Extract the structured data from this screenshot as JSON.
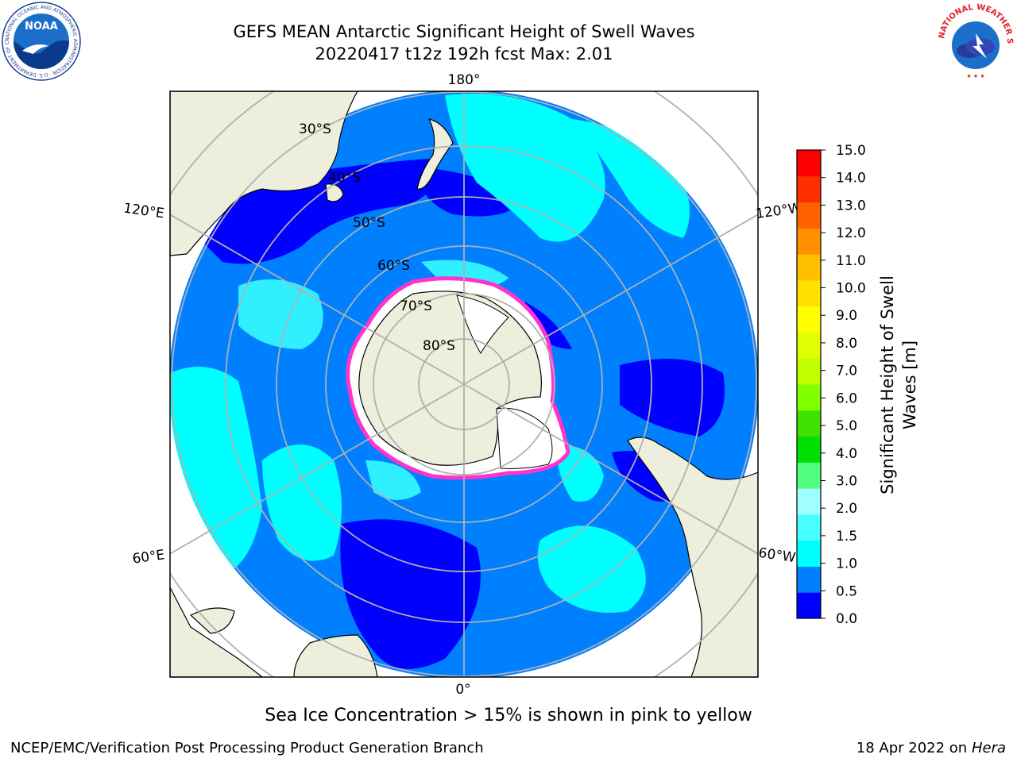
{
  "header": {
    "title_line1": "GEFS MEAN Antarctic Significant Height of Swell Waves",
    "title_line2": "20220417 t12z 192h fcst   Max: 2.01"
  },
  "logos": {
    "noaa": {
      "text": "NOAA",
      "ring_text": "NATIONAL OCEANIC AND ATMOSPHERIC ADMINISTRATION · U.S. DEPARTMENT OF COMMERCE ·"
    },
    "nws": {
      "ring_text": "NATIONAL WEATHER SERVICE"
    }
  },
  "map": {
    "projection": "south-polar-stereographic",
    "longitude_labels": [
      "180°",
      "120°E",
      "120°W",
      "60°E",
      "60°W",
      "0°"
    ],
    "latitude_labels": [
      "30°S",
      "40°S",
      "50°S",
      "60°S",
      "70°S",
      "80°S"
    ],
    "colors": {
      "land": "#eeeedc",
      "sea_ice_edge": "#ff33cc",
      "bin_0_0_5": "#0000ff",
      "bin_0_5_1_0": "#0080ff",
      "bin_1_0_1_5": "#00ffff",
      "bin_1_5_2_0": "#40ffff",
      "grid": "#b0b0b0"
    }
  },
  "colorbar": {
    "label_line1": "Significant Height of Swell",
    "label_line2": "Waves [m]",
    "ticks": [
      "0.0",
      "0.5",
      "1.0",
      "1.5",
      "2.0",
      "3.0",
      "4.0",
      "5.0",
      "6.0",
      "7.0",
      "8.0",
      "9.0",
      "10.0",
      "11.0",
      "12.0",
      "13.0",
      "14.0",
      "15.0"
    ],
    "colors": [
      "#0000ff",
      "#0080ff",
      "#00ffff",
      "#48ffff",
      "#a0ffff",
      "#50ff80",
      "#00e000",
      "#40e000",
      "#80ff00",
      "#c0ff00",
      "#e0ff00",
      "#ffff00",
      "#ffe000",
      "#ffc000",
      "#ff9000",
      "#ff6000",
      "#ff3000",
      "#ff0000"
    ]
  },
  "caption": "Sea Ice Concentration > 15% is shown in pink to yellow",
  "footer": {
    "left": "NCEP/EMC/Verification Post Processing Product Generation Branch",
    "right_prefix": "18 Apr 2022 on ",
    "right_host": "Hera"
  }
}
